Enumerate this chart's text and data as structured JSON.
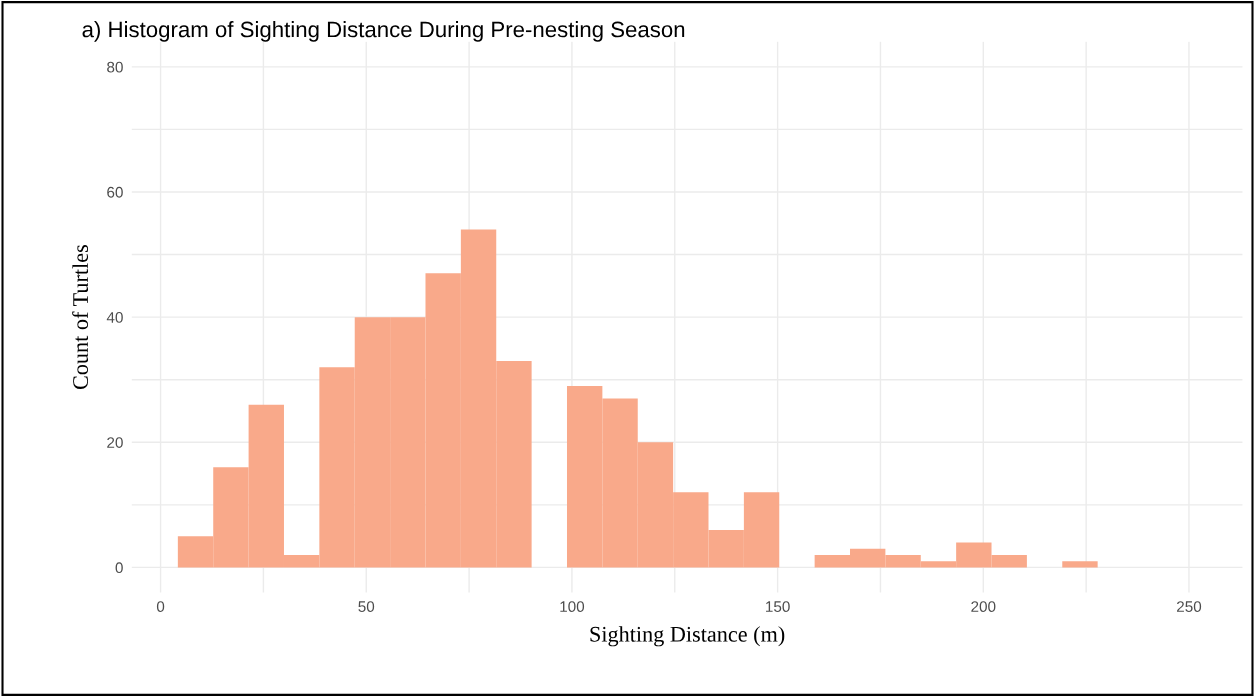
{
  "chart_data": {
    "type": "histogram",
    "title": "a) Histogram of Sighting Distance During Pre-nesting Season",
    "xlabel": "Sighting Distance (m)",
    "ylabel": "Count of Turtles",
    "bins": [
      4.2,
      12.8,
      21.4,
      30.0,
      38.6,
      47.2,
      55.8,
      64.4,
      73.0,
      81.6,
      90.2,
      98.8,
      107.4,
      116.0,
      124.6,
      133.2,
      141.8,
      150.4,
      159.0,
      167.6,
      176.2,
      184.8,
      193.4,
      202.0,
      210.6,
      219.2,
      227.8
    ],
    "values": [
      5,
      16,
      26,
      2,
      32,
      40,
      40,
      47,
      54,
      33,
      0,
      29,
      27,
      20,
      12,
      6,
      12,
      0,
      2,
      3,
      2,
      1,
      4,
      2,
      0,
      1
    ],
    "color": "#f9a98a",
    "xlim": [
      -7,
      263
    ],
    "ylim": [
      -4,
      84
    ],
    "xticks": [
      0,
      {
        "value": 25,
        "label": null
      },
      50,
      {
        "value": 75,
        "label": null
      },
      100,
      {
        "value": 125,
        "label": null
      },
      150,
      {
        "value": 175,
        "label": null
      },
      200,
      {
        "value": 225,
        "label": null
      },
      250
    ],
    "yticks": [
      0,
      {
        "value": 10,
        "label": null
      },
      20,
      {
        "value": 30,
        "label": null
      },
      40,
      {
        "value": 50,
        "label": null
      },
      60,
      {
        "value": 70,
        "label": null
      },
      80
    ],
    "grid": true
  }
}
